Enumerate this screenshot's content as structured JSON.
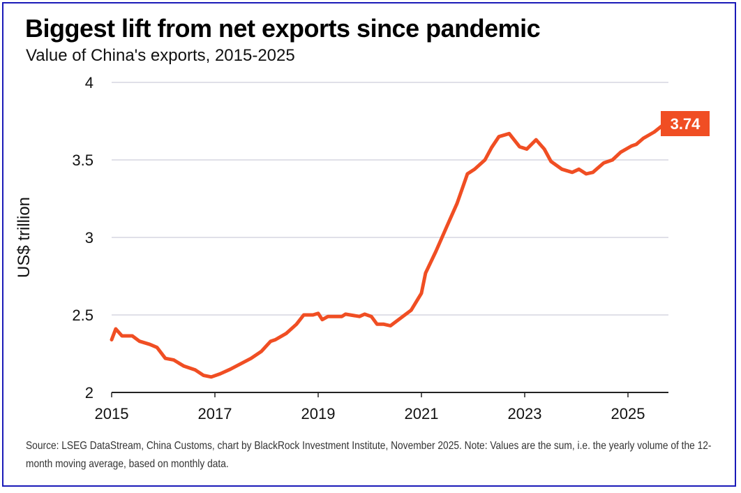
{
  "title": "Biggest lift from net exports since pandemic",
  "subtitle": "Value of China's exports, 2015-2025",
  "note": "Source: LSEG DataStream, China Customs, chart by BlackRock Investment Institute, November 2025. Note: Values are the sum, i.e. the yearly volume of the 12-month moving average, based on monthly data.",
  "chart_data": {
    "type": "line",
    "title": "Biggest lift from net exports since pandemic",
    "subtitle": "Value of China's exports, 2015-2025",
    "xlabel": "",
    "ylabel": "US$ trillion",
    "xlim": [
      2015,
      2025.8
    ],
    "ylim": [
      2,
      4
    ],
    "x_ticks": [
      "2015",
      "2017",
      "2019",
      "2021",
      "2023",
      "2025"
    ],
    "y_ticks": [
      "2",
      "2.5",
      "3",
      "3.5",
      "4"
    ],
    "grid": "horizontal",
    "line_color": "#f04e23",
    "end_label": "3.74",
    "series": [
      {
        "x": [
          2015.0,
          2015.08,
          2015.2,
          2015.4,
          2015.54,
          2015.74,
          2015.88,
          2016.04,
          2016.2,
          2016.4,
          2016.62,
          2016.78,
          2016.93,
          2017.1,
          2017.3,
          2017.5,
          2017.7,
          2017.9,
          2018.08,
          2018.17,
          2018.38,
          2018.58,
          2018.72,
          2018.9,
          2019.0,
          2019.08,
          2019.19,
          2019.46,
          2019.53,
          2019.8,
          2019.9,
          2020.03,
          2020.14,
          2020.27,
          2020.4,
          2020.6,
          2020.8,
          2021.0,
          2021.08,
          2021.28,
          2021.49,
          2021.69,
          2021.89,
          2022.03,
          2022.23,
          2022.36,
          2022.5,
          2022.7,
          2022.9,
          2023.04,
          2023.22,
          2023.38,
          2023.51,
          2023.72,
          2023.92,
          2024.05,
          2024.19,
          2024.32,
          2024.53,
          2024.7,
          2024.86,
          2025.07,
          2025.16,
          2025.3,
          2025.51,
          2025.68,
          2025.75
        ],
        "y": [
          2.34,
          2.41,
          2.365,
          2.365,
          2.33,
          2.31,
          2.29,
          2.22,
          2.21,
          2.17,
          2.145,
          2.11,
          2.1,
          2.12,
          2.15,
          2.185,
          2.22,
          2.265,
          2.33,
          2.34,
          2.38,
          2.44,
          2.5,
          2.5,
          2.51,
          2.47,
          2.49,
          2.49,
          2.505,
          2.49,
          2.505,
          2.49,
          2.44,
          2.44,
          2.43,
          2.48,
          2.53,
          2.64,
          2.77,
          2.91,
          3.07,
          3.22,
          3.41,
          3.44,
          3.5,
          3.58,
          3.65,
          3.67,
          3.585,
          3.57,
          3.63,
          3.57,
          3.49,
          3.44,
          3.42,
          3.44,
          3.41,
          3.42,
          3.48,
          3.5,
          3.55,
          3.59,
          3.6,
          3.64,
          3.68,
          3.725,
          3.74
        ]
      }
    ]
  }
}
